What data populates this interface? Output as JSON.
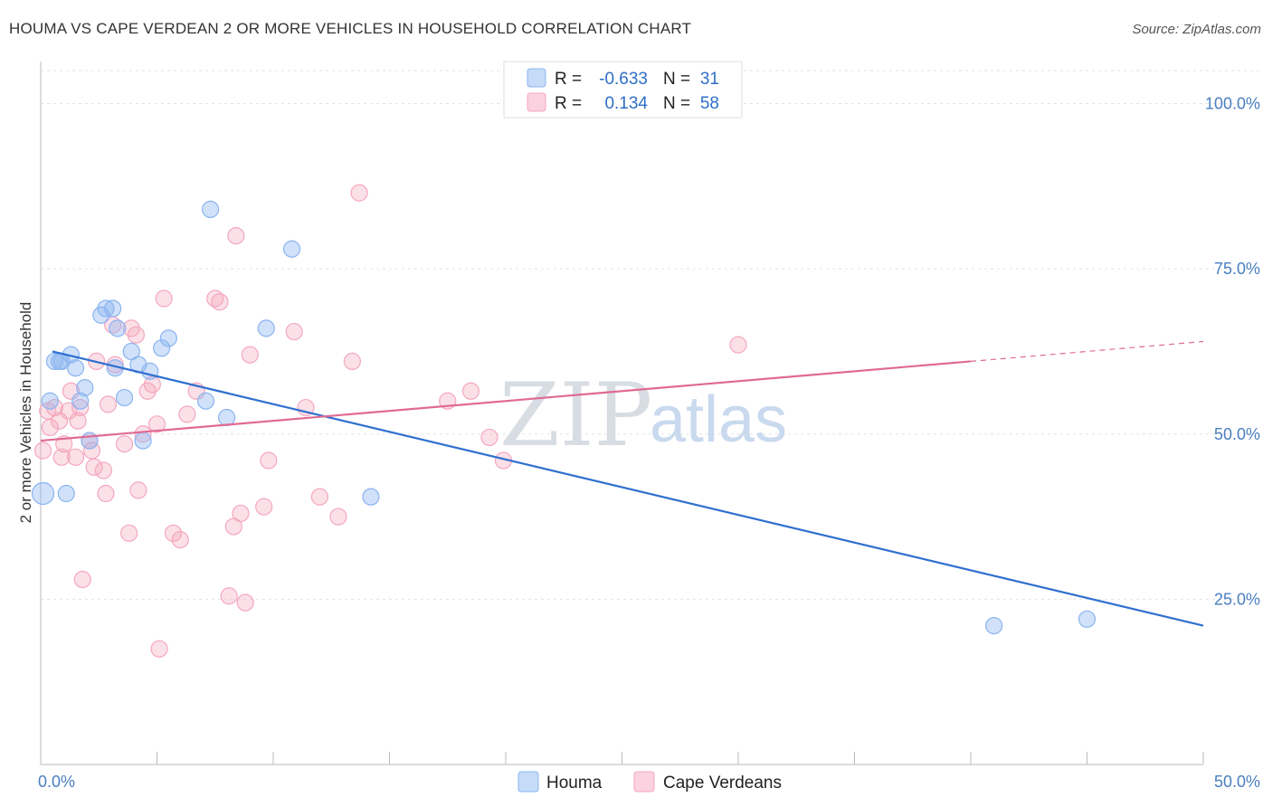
{
  "title": "HOUMA VS CAPE VERDEAN 2 OR MORE VEHICLES IN HOUSEHOLD CORRELATION CHART",
  "source": "Source: ZipAtlas.com",
  "watermark": {
    "zip": "ZIP",
    "atlas": "atlas"
  },
  "colors": {
    "houma": "#8ab4f0",
    "houma_line": "#2f6fd0",
    "cape": "#f4a7be",
    "cape_line": "#e06a92"
  },
  "legend": {
    "r_label": "R =",
    "n_label": "N =",
    "houma_r": "-0.633",
    "houma_n": "31",
    "cape_r": "0.134",
    "cape_n": "58"
  },
  "bottom_legend": {
    "houma": "Houma",
    "cape": "Cape Verdeans"
  },
  "chart_data": {
    "type": "scatter",
    "ylabel": "2 or more Vehicles in Household",
    "xlim": [
      0,
      50
    ],
    "ylim": [
      0,
      105
    ],
    "x_tick_labels": [
      "0.0%",
      "50.0%"
    ],
    "y_ticks": [
      25,
      50,
      75,
      100
    ],
    "y_tick_labels": [
      "25.0%",
      "50.0%",
      "75.0%",
      "100.0%"
    ],
    "grid": true,
    "series": [
      {
        "name": "Houma",
        "points": [
          [
            0.1,
            41.0
          ],
          [
            0.4,
            55.0
          ],
          [
            0.6,
            61.0
          ],
          [
            0.8,
            61.0
          ],
          [
            0.9,
            61.0
          ],
          [
            1.1,
            41.0
          ],
          [
            1.3,
            62.0
          ],
          [
            1.5,
            60.0
          ],
          [
            1.7,
            55.0
          ],
          [
            1.9,
            57.0
          ],
          [
            2.1,
            49.0
          ],
          [
            2.6,
            68.0
          ],
          [
            2.8,
            69.0
          ],
          [
            3.1,
            69.0
          ],
          [
            3.2,
            60.0
          ],
          [
            3.3,
            66.0
          ],
          [
            3.6,
            55.5
          ],
          [
            3.9,
            62.5
          ],
          [
            4.2,
            60.5
          ],
          [
            4.4,
            49.0
          ],
          [
            4.7,
            59.5
          ],
          [
            5.2,
            63.0
          ],
          [
            5.5,
            64.5
          ],
          [
            7.1,
            55.0
          ],
          [
            7.3,
            84.0
          ],
          [
            8.0,
            52.5
          ],
          [
            9.7,
            66.0
          ],
          [
            10.8,
            78.0
          ],
          [
            14.2,
            40.5
          ],
          [
            41.0,
            21.0
          ],
          [
            45.0,
            22.0
          ]
        ],
        "trend": {
          "x": [
            0.5,
            50.0
          ],
          "y": [
            62.5,
            21.0
          ]
        }
      },
      {
        "name": "Cape Verdeans",
        "points": [
          [
            0.1,
            47.5
          ],
          [
            0.3,
            53.5
          ],
          [
            0.4,
            51.0
          ],
          [
            0.6,
            54.0
          ],
          [
            0.8,
            52.0
          ],
          [
            0.9,
            46.5
          ],
          [
            1.0,
            48.5
          ],
          [
            1.2,
            53.5
          ],
          [
            1.3,
            56.5
          ],
          [
            1.5,
            46.5
          ],
          [
            1.6,
            52.0
          ],
          [
            1.7,
            54.0
          ],
          [
            1.8,
            28.0
          ],
          [
            2.1,
            49.0
          ],
          [
            2.2,
            47.5
          ],
          [
            2.3,
            45.0
          ],
          [
            2.4,
            61.0
          ],
          [
            2.7,
            44.5
          ],
          [
            2.8,
            41.0
          ],
          [
            2.9,
            54.5
          ],
          [
            3.1,
            66.5
          ],
          [
            3.2,
            60.5
          ],
          [
            3.6,
            48.5
          ],
          [
            3.8,
            35.0
          ],
          [
            3.9,
            66.0
          ],
          [
            4.1,
            65.0
          ],
          [
            4.2,
            41.5
          ],
          [
            4.4,
            50.0
          ],
          [
            4.6,
            56.5
          ],
          [
            4.8,
            57.5
          ],
          [
            5.0,
            51.5
          ],
          [
            5.1,
            17.5
          ],
          [
            5.3,
            70.5
          ],
          [
            5.7,
            35.0
          ],
          [
            6.0,
            34.0
          ],
          [
            6.3,
            53.0
          ],
          [
            6.7,
            56.5
          ],
          [
            7.5,
            70.5
          ],
          [
            7.7,
            70.0
          ],
          [
            8.1,
            25.5
          ],
          [
            8.3,
            36.0
          ],
          [
            8.4,
            80.0
          ],
          [
            8.6,
            38.0
          ],
          [
            8.8,
            24.5
          ],
          [
            9.0,
            62.0
          ],
          [
            9.6,
            39.0
          ],
          [
            9.8,
            46.0
          ],
          [
            10.9,
            65.5
          ],
          [
            11.4,
            54.0
          ],
          [
            12.0,
            40.5
          ],
          [
            12.8,
            37.5
          ],
          [
            13.4,
            61.0
          ],
          [
            13.7,
            86.5
          ],
          [
            17.5,
            55.0
          ],
          [
            18.5,
            56.5
          ],
          [
            19.3,
            49.5
          ],
          [
            19.9,
            46.0
          ],
          [
            30.0,
            63.5
          ]
        ],
        "trend": {
          "x": [
            0.0,
            40.0
          ],
          "y": [
            49.0,
            61.0
          ]
        },
        "trend_dashed": {
          "x": [
            40.0,
            50.0
          ],
          "y": [
            61.0,
            64.0
          ]
        }
      }
    ]
  }
}
